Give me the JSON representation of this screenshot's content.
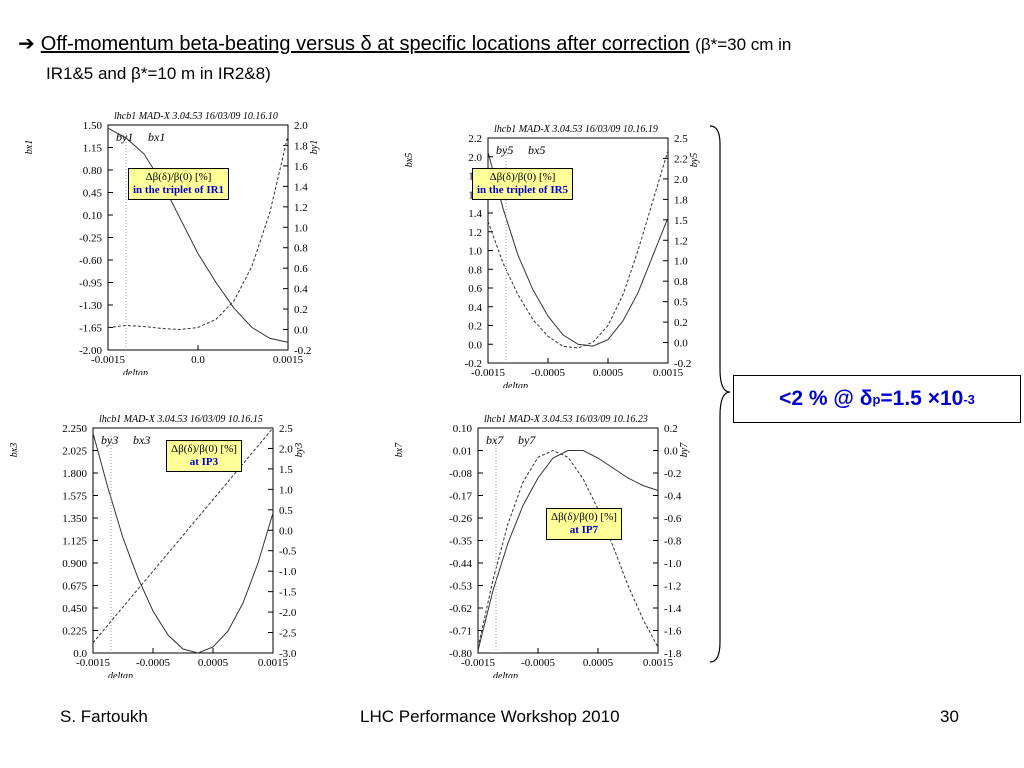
{
  "title": {
    "arrow": "➔",
    "main": "Off-momentum beta-beating versus δ at specific locations after correction",
    "param_line1": "(β*=30 cm in",
    "param_line2": "IR1&5 and β*=10 m in IR2&8)"
  },
  "result": {
    "prefix": "<2 % @ δ",
    "sub": "p",
    "mid": "=1.5 ×10",
    "sup": "-3"
  },
  "footer": {
    "author": "S. Fartoukh",
    "event": "LHC Performance Workshop 2010",
    "page": "30"
  },
  "chart_data": [
    {
      "type": "line",
      "header": "lhcb1  MAD-X 3.04.53   16/03/09 10.16.10",
      "series_labels": [
        "by1",
        "bx1"
      ],
      "box_line1": "Δβ(δ)/β(0) [%]",
      "box_line2": "in the triplet of IR1",
      "xlabel": "deltap",
      "ylabel_left": "bx1",
      "ylabel_right": "by1",
      "xlim": [
        -0.0015,
        0.0015
      ],
      "xticks": [
        "-0.0015",
        "0.0",
        "0.0015"
      ],
      "ylim_left": [
        -2.0,
        1.5
      ],
      "yticks_left": [
        "1.50",
        "1.15",
        "0.80",
        "0.45",
        "0.10",
        "-0.25",
        "-0.60",
        "-0.95",
        "-1.30",
        "-1.65",
        "-2.00"
      ],
      "ylim_right": [
        -0.2,
        2.0
      ],
      "yticks_right": [
        "2.0",
        "1.8",
        "1.6",
        "1.4",
        "1.2",
        "1.0",
        "0.8",
        "0.6",
        "0.4",
        "0.2",
        "0.0",
        "-0.2"
      ],
      "series": [
        {
          "name": "bx1",
          "axis": "left",
          "style": "solid",
          "x": [
            -0.0015,
            -0.0012,
            -0.0009,
            -0.0006,
            -0.0003,
            0.0,
            0.0003,
            0.0006,
            0.0009,
            0.0012,
            0.0015
          ],
          "y": [
            1.45,
            1.3,
            1.05,
            0.6,
            0.05,
            -0.5,
            -0.95,
            -1.35,
            -1.65,
            -1.82,
            -1.88
          ]
        },
        {
          "name": "by1",
          "axis": "right",
          "style": "dashed",
          "x": [
            -0.0015,
            -0.0012,
            -0.0009,
            -0.0006,
            -0.0003,
            0.0,
            0.0003,
            0.0006,
            0.0009,
            0.0012,
            0.0015
          ],
          "y": [
            0.02,
            0.04,
            0.03,
            0.01,
            0.0,
            0.02,
            0.1,
            0.28,
            0.62,
            1.15,
            1.9
          ]
        }
      ]
    },
    {
      "type": "line",
      "header": "lhcb1 MAD-X 3.04.53   16/03/09 10.16.19",
      "series_labels": [
        "by5",
        "bx5"
      ],
      "box_line1": "Δβ(δ)/β(0) [%]",
      "box_line2": "in the triplet of IR5",
      "xlabel": "deltap",
      "ylabel_left": "bx5",
      "ylabel_right": "by5",
      "xlim": [
        -0.0015,
        0.0015
      ],
      "xticks": [
        "-0.0015",
        "-0.0005",
        "0.0005",
        "0.0015"
      ],
      "ylim_left": [
        -0.2,
        2.2
      ],
      "yticks_left": [
        "2.2",
        "2.0",
        "1.8",
        "1.6",
        "1.4",
        "1.2",
        "1.0",
        "0.8",
        "0.6",
        "0.4",
        "0.2",
        "0.0",
        "-0.2"
      ],
      "ylim_right": [
        -0.2,
        2.5
      ],
      "yticks_right": [
        "2.5",
        "2.2",
        "2.0",
        "1.8",
        "1.5",
        "1.2",
        "1.0",
        "0.8",
        "0.5",
        "0.2",
        "0.0",
        "-0.2"
      ],
      "series": [
        {
          "name": "bx5",
          "axis": "left",
          "style": "solid",
          "x": [
            -0.0015,
            -0.00125,
            -0.001,
            -0.00075,
            -0.0005,
            -0.00025,
            0.0,
            0.00025,
            0.0005,
            0.00075,
            0.001,
            0.00125,
            0.0015
          ],
          "y": [
            2.05,
            1.45,
            0.95,
            0.58,
            0.3,
            0.1,
            0.0,
            -0.02,
            0.05,
            0.25,
            0.55,
            0.95,
            1.35
          ]
        },
        {
          "name": "by5",
          "axis": "right",
          "style": "dashed",
          "x": [
            -0.0015,
            -0.00125,
            -0.001,
            -0.00075,
            -0.0005,
            -0.00025,
            0.0,
            0.00025,
            0.0005,
            0.00075,
            0.001,
            0.00125,
            0.0015
          ],
          "y": [
            1.5,
            1.0,
            0.62,
            0.32,
            0.12,
            0.0,
            -0.02,
            0.05,
            0.25,
            0.62,
            1.15,
            1.75,
            2.35
          ]
        }
      ]
    },
    {
      "type": "line",
      "header": "lhcb1     MAD-X 3.04.53   16/03/09 10.16.15",
      "series_labels": [
        "by3",
        "bx3"
      ],
      "box_line1": "Δβ(δ)/β(0) [%]",
      "box_line2": "at IP3",
      "xlabel": "deltap",
      "ylabel_left": "bx3",
      "ylabel_right": "by3",
      "xlim": [
        -0.0015,
        0.0015
      ],
      "xticks": [
        "-0.0015",
        "-0.0005",
        "0.0005",
        "0.0015"
      ],
      "ylim_left": [
        0.0,
        2.25
      ],
      "yticks_left": [
        "2.250",
        "2.025",
        "1.800",
        "1.575",
        "1.350",
        "1.125",
        "0.900",
        "0.675",
        "0.450",
        "0.225",
        "0.0"
      ],
      "ylim_right": [
        -3.0,
        2.5
      ],
      "yticks_right": [
        "2.5",
        "2.0",
        "1.5",
        "1.0",
        "0.5",
        "0.0",
        "-0.5",
        "-1.0",
        "-1.5",
        "-2.0",
        "-2.5",
        "-3.0"
      ],
      "series": [
        {
          "name": "bx3",
          "axis": "left",
          "style": "solid",
          "x": [
            -0.0015,
            -0.00125,
            -0.001,
            -0.00075,
            -0.0005,
            -0.00025,
            0.0,
            0.00025,
            0.0005,
            0.00075,
            0.001,
            0.00125,
            0.0015
          ],
          "y": [
            2.2,
            1.65,
            1.15,
            0.75,
            0.42,
            0.18,
            0.04,
            0.0,
            0.06,
            0.22,
            0.5,
            0.9,
            1.4
          ]
        },
        {
          "name": "by3",
          "axis": "right",
          "style": "dashed",
          "x": [
            -0.0015,
            -0.0015,
            0.0015
          ],
          "y": [
            -2.75,
            -2.75,
            2.5
          ]
        }
      ]
    },
    {
      "type": "line",
      "header": "lhcb1     MAD-X 3.04.53   16/03/09 10.16.23",
      "series_labels": [
        "bx7",
        "by7"
      ],
      "box_line1": "Δβ(δ)/β(0) [%]",
      "box_line2": "at IP7",
      "xlabel": "deltap",
      "ylabel_left": "bx7",
      "ylabel_right": "by7",
      "xlim": [
        -0.0015,
        0.0015
      ],
      "xticks": [
        "-0.0015",
        "-0.0005",
        "0.0005",
        "0.0015"
      ],
      "ylim_left": [
        -0.8,
        0.1
      ],
      "yticks_left": [
        "0.10",
        "0.01",
        "-0.08",
        "-0.17",
        "-0.26",
        "-0.35",
        "-0.44",
        "-0.53",
        "-0.62",
        "-0.71",
        "-0.80"
      ],
      "ylim_right": [
        -1.8,
        0.2
      ],
      "yticks_right": [
        "0.2",
        "0.0",
        "-0.2",
        "-0.4",
        "-0.6",
        "-0.8",
        "-1.0",
        "-1.2",
        "-1.4",
        "-1.6",
        "-1.8"
      ],
      "series": [
        {
          "name": "bx7",
          "axis": "left",
          "style": "solid",
          "x": [
            -0.0015,
            -0.00125,
            -0.001,
            -0.00075,
            -0.0005,
            -0.00025,
            0.0,
            0.00025,
            0.0005,
            0.00075,
            0.001,
            0.00125,
            0.0015
          ],
          "y": [
            -0.79,
            -0.55,
            -0.36,
            -0.21,
            -0.1,
            -0.02,
            0.01,
            0.01,
            -0.02,
            -0.06,
            -0.1,
            -0.13,
            -0.15
          ]
        },
        {
          "name": "by7",
          "axis": "right",
          "style": "dashed",
          "x": [
            -0.0015,
            -0.00125,
            -0.001,
            -0.00075,
            -0.0005,
            -0.00025,
            0.0,
            0.00025,
            0.0005,
            0.00075,
            0.001,
            0.00125,
            0.0015
          ],
          "y": [
            -1.75,
            -1.15,
            -0.65,
            -0.28,
            -0.06,
            0.0,
            -0.06,
            -0.25,
            -0.52,
            -0.85,
            -1.2,
            -1.5,
            -1.75
          ]
        }
      ]
    }
  ]
}
